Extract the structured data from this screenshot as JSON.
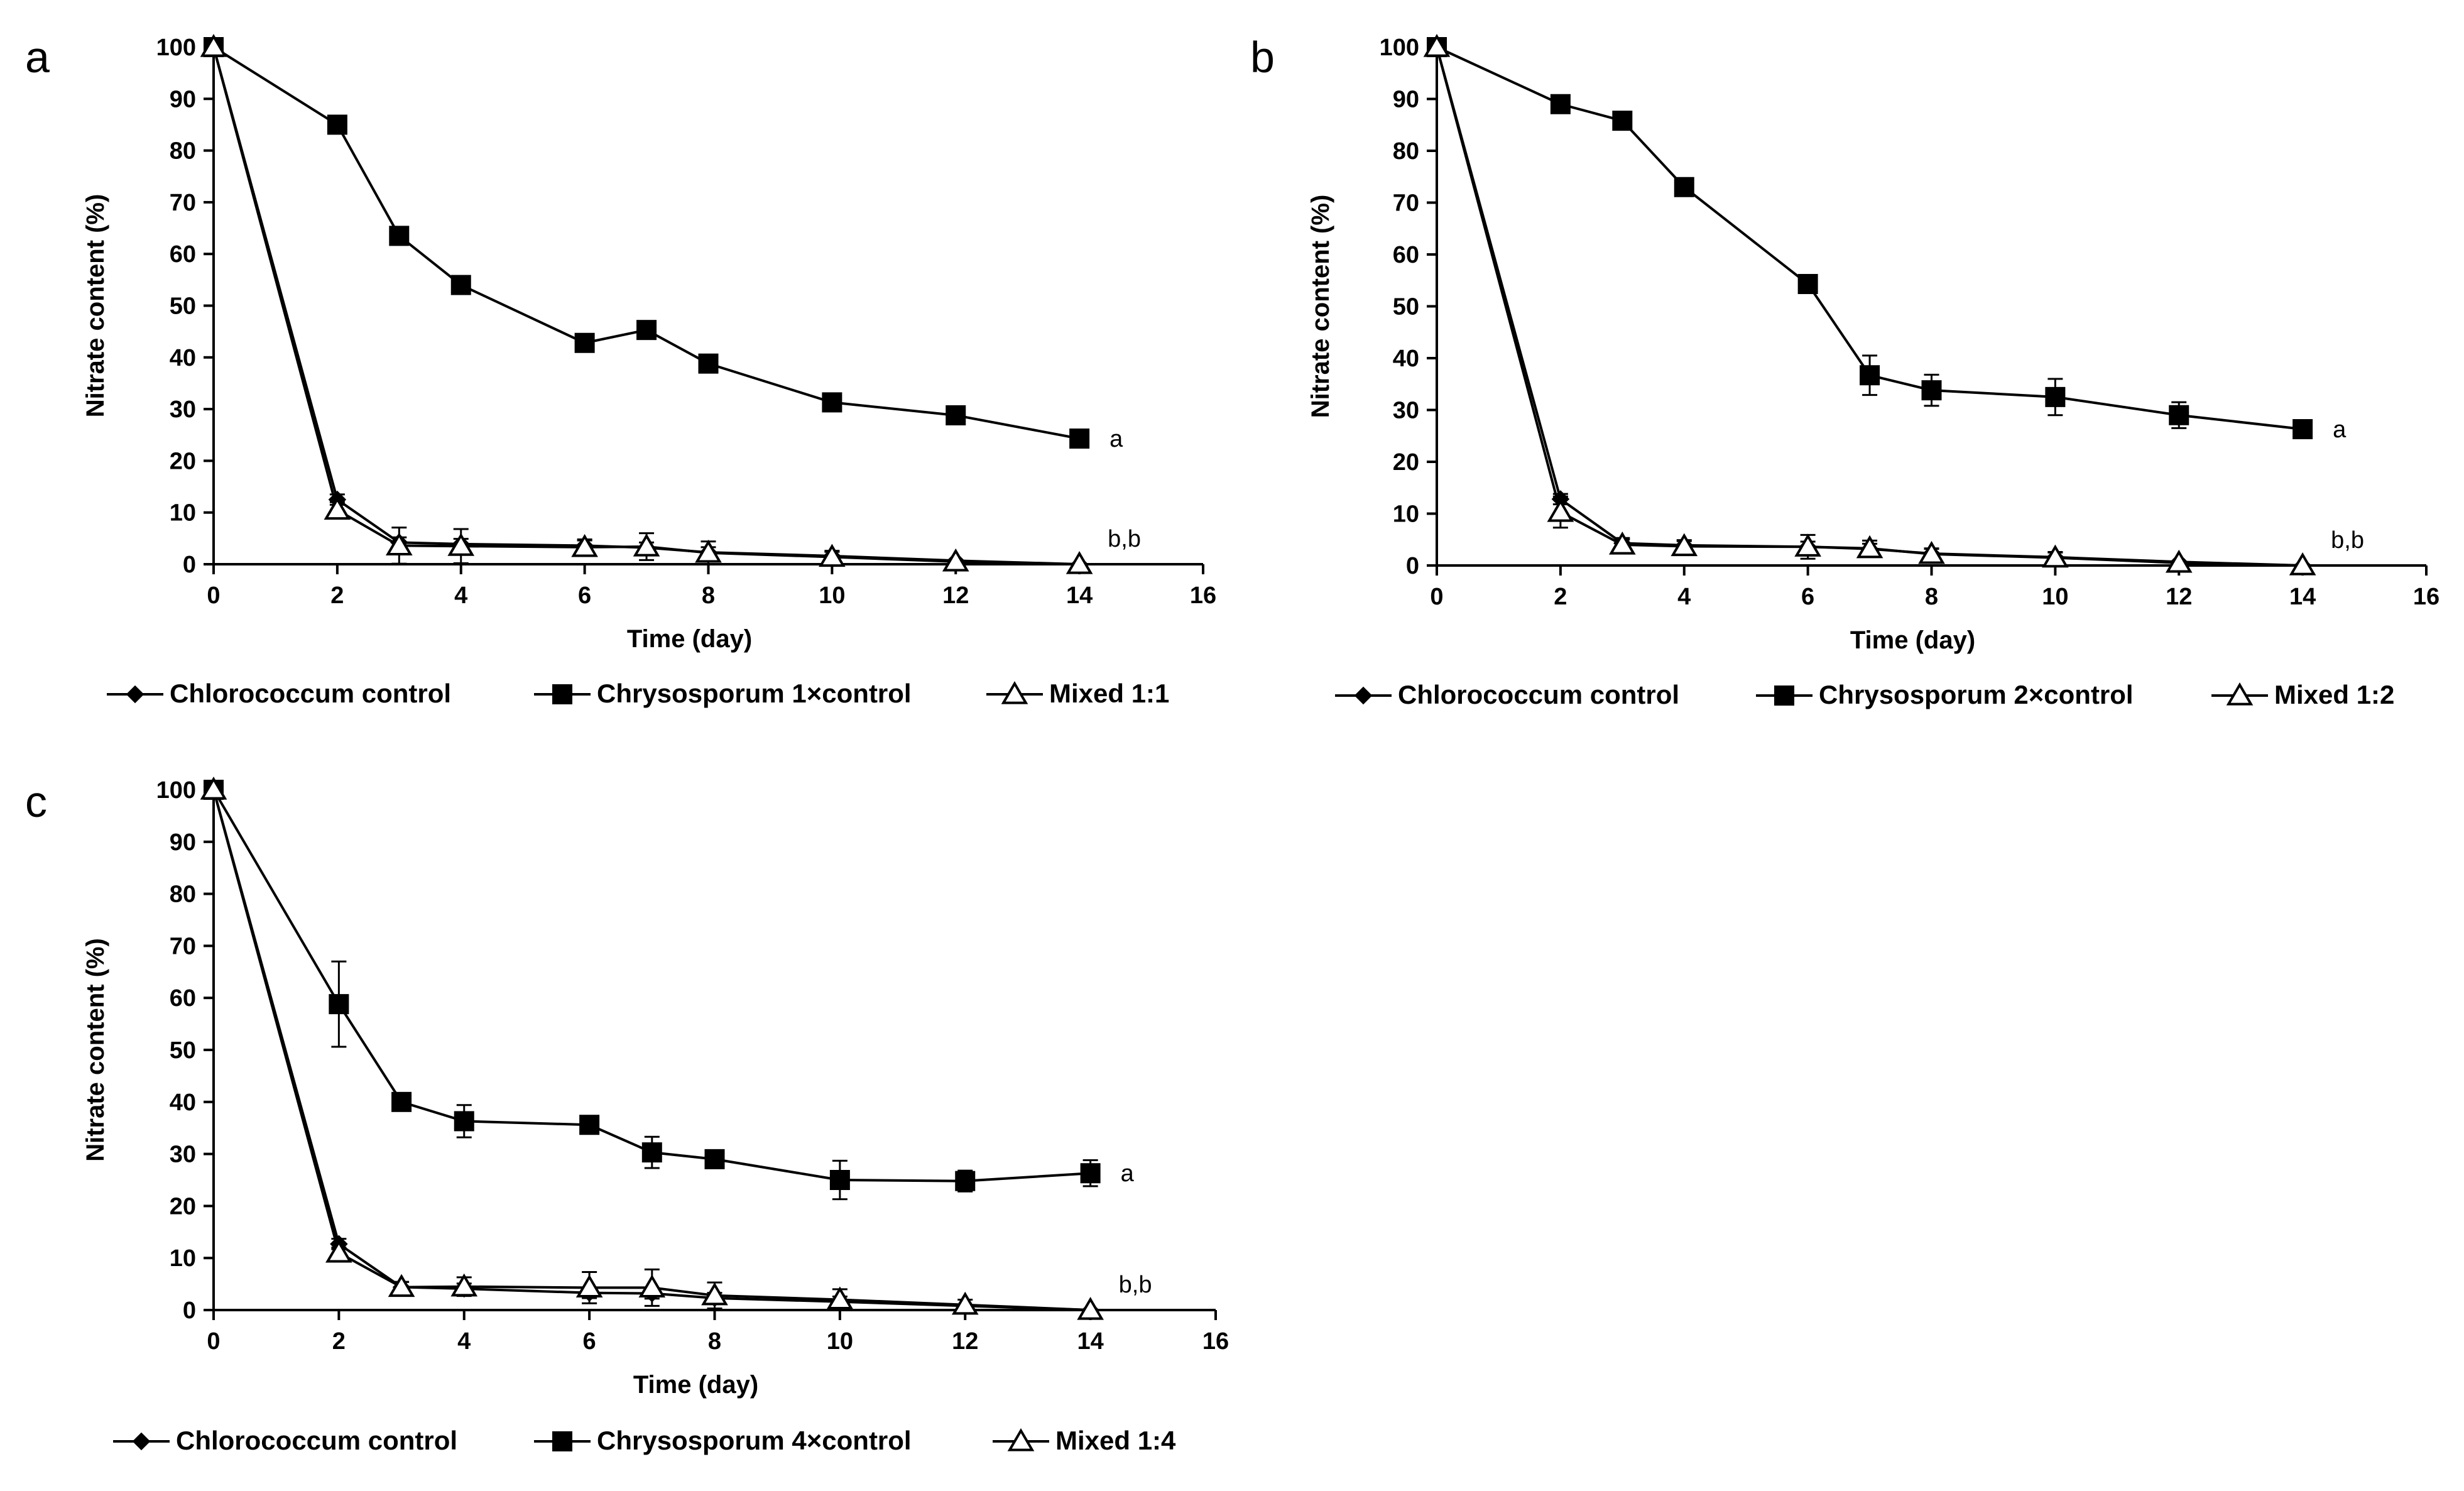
{
  "chart_data": [
    {
      "panel": "a",
      "type": "line",
      "xlabel": "Time (day)",
      "ylabel": "Nitrate content (%)",
      "xlim": [
        0,
        16
      ],
      "ylim": [
        0,
        100
      ],
      "x_ticks": [
        "0",
        "2",
        "4",
        "6",
        "8",
        "10",
        "12",
        "14",
        "16"
      ],
      "y_ticks": [
        "0",
        "10",
        "20",
        "30",
        "40",
        "50",
        "60",
        "70",
        "80",
        "90",
        "100"
      ],
      "series": [
        {
          "name": "Chlorococcum control",
          "marker": "diamond",
          "x": [
            0,
            2,
            3,
            4,
            6,
            7,
            8,
            10,
            12,
            14
          ],
          "values": [
            100,
            12.5,
            4.2,
            3.9,
            3.6,
            3.2,
            2.3,
            1.6,
            0.7,
            0
          ],
          "errors": [
            0,
            1,
            1,
            1,
            1,
            1,
            1,
            1,
            0.5,
            0
          ]
        },
        {
          "name": "Chrysosporum 1×control",
          "marker": "square",
          "x": [
            0,
            2,
            3,
            4,
            6,
            7,
            8,
            10,
            12,
            14
          ],
          "values": [
            100,
            85,
            63.5,
            54,
            42.8,
            45.3,
            38.8,
            31.3,
            28.8,
            24.3
          ],
          "errors": [
            0,
            1,
            1,
            1,
            1,
            1,
            1,
            1,
            1,
            1
          ]
        },
        {
          "name": "Mixed 1:1",
          "marker": "triangle",
          "x": [
            0,
            2,
            3,
            4,
            6,
            7,
            8,
            10,
            12,
            14
          ],
          "values": [
            100,
            10.5,
            3.6,
            3.5,
            3.3,
            3.4,
            2.2,
            1.4,
            0.5,
            0
          ],
          "errors": [
            0,
            1.5,
            3.5,
            3.3,
            1.5,
            2.6,
            2.2,
            1,
            0.5,
            0
          ]
        }
      ],
      "annotations": [
        {
          "text": "a",
          "near_series": "Chrysosporum 1×control"
        },
        {
          "text": "b,b",
          "near_series": "Mixed 1:1"
        }
      ]
    },
    {
      "panel": "b",
      "type": "line",
      "xlabel": "Time (day)",
      "ylabel": "Nitrate content (%)",
      "xlim": [
        0,
        16
      ],
      "ylim": [
        0,
        100
      ],
      "x_ticks": [
        "0",
        "2",
        "4",
        "6",
        "8",
        "10",
        "12",
        "14",
        "16"
      ],
      "y_ticks": [
        "0",
        "10",
        "20",
        "30",
        "40",
        "50",
        "60",
        "70",
        "80",
        "90",
        "100"
      ],
      "series": [
        {
          "name": "Chlorococcum control",
          "marker": "diamond",
          "x": [
            0,
            2,
            3,
            4,
            6,
            7,
            8,
            10,
            12,
            14
          ],
          "values": [
            100,
            12.8,
            4.3,
            3.9,
            3.6,
            3.2,
            2.3,
            1.6,
            0.7,
            0
          ],
          "errors": [
            0,
            1,
            1,
            1,
            1,
            1,
            1,
            1,
            0.5,
            0
          ]
        },
        {
          "name": "Chrysosporum 2×control",
          "marker": "square",
          "x": [
            0,
            2,
            3,
            4,
            6,
            7,
            8,
            10,
            12,
            14
          ],
          "values": [
            100,
            89,
            85.8,
            73,
            54.3,
            36.7,
            33.8,
            32.5,
            29,
            26.3
          ],
          "errors": [
            0,
            1,
            1,
            1,
            1,
            3.8,
            3,
            3.5,
            2.5,
            1
          ]
        },
        {
          "name": "Mixed 1:2",
          "marker": "triangle",
          "x": [
            0,
            2,
            3,
            4,
            6,
            7,
            8,
            10,
            12,
            14
          ],
          "values": [
            100,
            10.3,
            4,
            3.7,
            3.6,
            3.3,
            2.2,
            1.5,
            0.5,
            0
          ],
          "errors": [
            0,
            3,
            1,
            1,
            2.3,
            1.5,
            1,
            1,
            0.5,
            0
          ]
        }
      ],
      "annotations": [
        {
          "text": "a",
          "near_series": "Chrysosporum 2×control"
        },
        {
          "text": "b,b",
          "near_series": "Mixed 1:2"
        }
      ]
    },
    {
      "panel": "c",
      "type": "line",
      "xlabel": "Time (day)",
      "ylabel": "Nitrate content (%)",
      "xlim": [
        0,
        16
      ],
      "ylim": [
        0,
        100
      ],
      "x_ticks": [
        "0",
        "2",
        "4",
        "6",
        "8",
        "10",
        "12",
        "14",
        "16"
      ],
      "y_ticks": [
        "0",
        "10",
        "20",
        "30",
        "40",
        "50",
        "60",
        "70",
        "80",
        "90",
        "100"
      ],
      "series": [
        {
          "name": "Chlorococcum control",
          "marker": "diamond",
          "x": [
            0,
            2,
            3,
            4,
            6,
            7,
            8,
            10,
            12,
            14
          ],
          "values": [
            100,
            12.7,
            4.4,
            4.1,
            3.3,
            3.2,
            2.3,
            1.6,
            0.8,
            0
          ],
          "errors": [
            0,
            1,
            1,
            1,
            1,
            1,
            1,
            1,
            0.5,
            0
          ]
        },
        {
          "name": "Chrysosporum 4×control",
          "marker": "square",
          "x": [
            0,
            2,
            3,
            4,
            6,
            7,
            8,
            10,
            12,
            14
          ],
          "values": [
            100,
            58.8,
            40,
            36.3,
            35.6,
            30.3,
            29,
            25,
            24.8,
            26.3
          ],
          "errors": [
            0,
            8.2,
            1,
            3.1,
            1,
            3,
            1,
            3.7,
            2,
            2.5
          ]
        },
        {
          "name": "Mixed 1:4",
          "marker": "triangle",
          "x": [
            0,
            2,
            3,
            4,
            6,
            7,
            8,
            10,
            12,
            14
          ],
          "values": [
            100,
            11,
            4.4,
            4.5,
            4.3,
            4.3,
            2.8,
            2,
            1,
            0
          ],
          "errors": [
            0,
            1,
            1,
            1.8,
            3,
            3.5,
            2.5,
            2,
            1,
            0
          ]
        }
      ],
      "annotations": [
        {
          "text": "a",
          "near_series": "Chrysosporum 4×control"
        },
        {
          "text": "b,b",
          "near_series": "Mixed 1:4"
        }
      ]
    }
  ]
}
